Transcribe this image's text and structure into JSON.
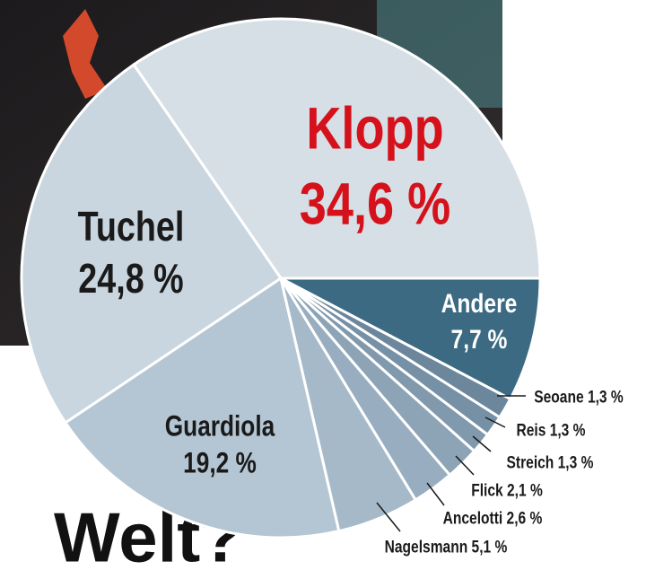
{
  "chart_data": {
    "type": "pie",
    "categories": [
      "Klopp",
      "Tuchel",
      "Guardiola",
      "Nagelsmann",
      "Ancelotti",
      "Flick",
      "Streich",
      "Reis",
      "Seoane",
      "Andere"
    ],
    "values": [
      34.6,
      24.8,
      19.2,
      5.1,
      2.6,
      2.1,
      1.3,
      1.3,
      1.3,
      7.7
    ],
    "value_labels": [
      "34,6 %",
      "24,8 %",
      "19,2 %",
      "5,1 %",
      "2,6 %",
      "2,1 %",
      "1,3 %",
      "1,3 %",
      "1,3 %",
      "7,7 %"
    ],
    "colors": [
      "#d7dfe6",
      "#c9d5df",
      "#b4c6d3",
      "#a5b9c8",
      "#98aec0",
      "#8ca4b6",
      "#8099ad",
      "#7690a5",
      "#6c879c",
      "#3b6a82"
    ],
    "highlight_color": "#d5121b",
    "headline_fragment": "Welt?"
  }
}
